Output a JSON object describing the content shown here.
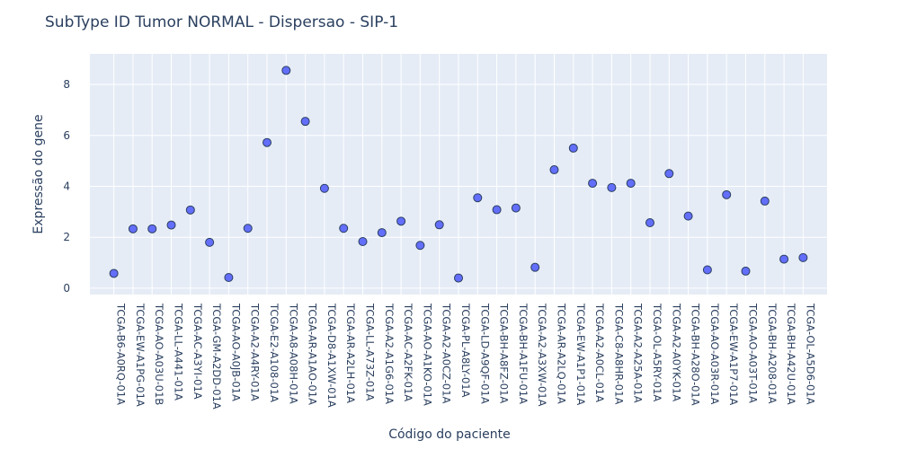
{
  "chart_data": {
    "type": "scatter",
    "title": "SubType ID Tumor NORMAL - Dispersao - SIP-1",
    "xlabel": "Código do paciente",
    "ylabel": "Expressão do gene",
    "ylim": [
      -0.25,
      9.2
    ],
    "yticks": [
      "0",
      "2",
      "4",
      "6",
      "8"
    ],
    "grid": true,
    "marker_color": "#636efa",
    "marker_edge_color": "#2a3f5f",
    "background_color": "#e5ecf6",
    "categories": [
      "TCGA-B6-A0RQ-01A",
      "TCGA-EW-A1PG-01A",
      "TCGA-AO-A03U-01B",
      "TCGA-LL-A441-01A",
      "TCGA-AC-A3YI-01A",
      "TCGA-GM-A2DD-01A",
      "TCGA-AO-A0JB-01A",
      "TCGA-A2-A4RY-01A",
      "TCGA-E2-A108-01A",
      "TCGA-A8-A08H-01A",
      "TCGA-AR-A1AO-01A",
      "TCGA-D8-A1XW-01A",
      "TCGA-AR-A2LH-01A",
      "TCGA-LL-A73Z-01A",
      "TCGA-A2-A1G6-01A",
      "TCGA-AC-A2FK-01A",
      "TCGA-AO-A1KO-01A",
      "TCGA-A2-A0CZ-01A",
      "TCGA-PL-A8LY-01A",
      "TCGA-LD-A9QF-01A",
      "TCGA-BH-A8FZ-01A",
      "TCGA-BH-A1FU-01A",
      "TCGA-A2-A3XW-01A",
      "TCGA-AR-A2LQ-01A",
      "TCGA-EW-A1P1-01A",
      "TCGA-A2-A0CL-01A",
      "TCGA-C8-A8HR-01A",
      "TCGA-A2-A25A-01A",
      "TCGA-OL-A5RY-01A",
      "TCGA-A2-A0YK-01A",
      "TCGA-BH-A28O-01A",
      "TCGA-AO-A03R-01A",
      "TCGA-EW-A1P7-01A",
      "TCGA-AO-A03T-01A",
      "TCGA-BH-A208-01A",
      "TCGA-BH-A42U-01A",
      "TCGA-OL-A5D6-01A"
    ],
    "values": [
      0.58,
      2.33,
      2.33,
      2.48,
      3.07,
      1.8,
      0.42,
      2.35,
      5.72,
      8.55,
      6.55,
      3.92,
      2.35,
      1.83,
      2.18,
      2.63,
      1.68,
      2.49,
      0.4,
      3.55,
      3.08,
      3.15,
      0.82,
      4.65,
      5.5,
      4.12,
      3.95,
      4.12,
      2.57,
      4.5,
      2.83,
      0.72,
      3.67,
      0.67,
      3.42,
      1.14,
      1.2
    ]
  }
}
